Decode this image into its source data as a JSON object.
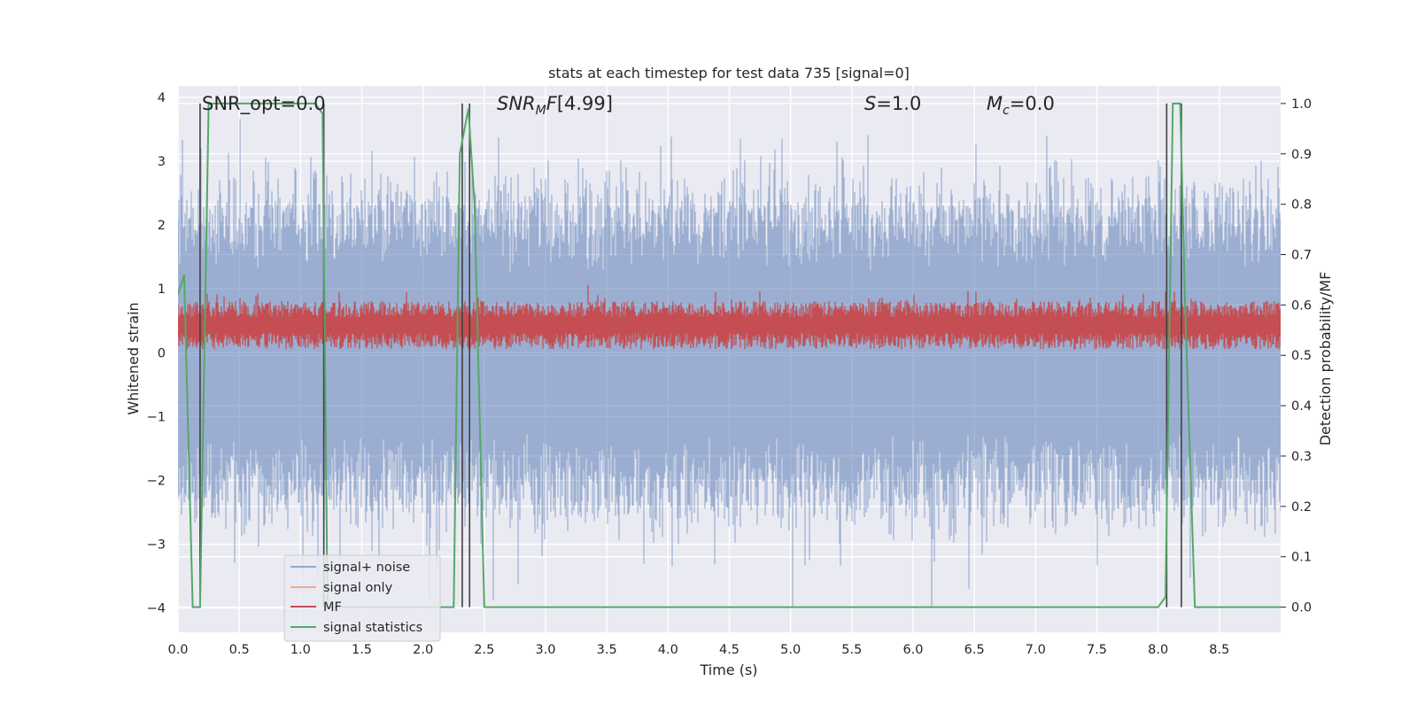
{
  "chart_data": {
    "type": "line",
    "title": "stats at each timestep for test data 735 [signal=0]",
    "xlabel": "Time (s)",
    "ylabel_left": "Whitened strain",
    "ylabel_right": "Detection probability/MF",
    "xlim": [
      0.0,
      9.0
    ],
    "ylim_left": [
      -4.38,
      4.18
    ],
    "ylim_right": [
      -0.05,
      1.035
    ],
    "x_ticks": [
      0.0,
      0.5,
      1.0,
      1.5,
      2.0,
      2.5,
      3.0,
      3.5,
      4.0,
      4.5,
      5.0,
      5.5,
      6.0,
      6.5,
      7.0,
      7.5,
      8.0,
      8.5
    ],
    "x_tick_labels": [
      "0.0",
      "0.5",
      "1.0",
      "1.5",
      "2.0",
      "2.5",
      "3.0",
      "3.5",
      "4.0",
      "4.5",
      "5.0",
      "5.5",
      "6.0",
      "6.5",
      "7.0",
      "7.5",
      "8.0",
      "8.5"
    ],
    "y_left_ticks": [
      4,
      3,
      2,
      1,
      0,
      -1,
      -2,
      -3,
      -4
    ],
    "y_left_tick_labels": [
      "4",
      "3",
      "2",
      "1",
      "0",
      "−1",
      "−2",
      "−3",
      "−4"
    ],
    "y_right_ticks": [
      1.0,
      0.9,
      0.8,
      0.7,
      0.6,
      0.5,
      0.4,
      0.3,
      0.2,
      0.1,
      0.0
    ],
    "y_right_tick_labels": [
      "1.0",
      "0.9",
      "0.8",
      "0.7",
      "0.6",
      "0.5",
      "0.4",
      "0.3",
      "0.2",
      "0.1",
      "0.0"
    ],
    "grid": true,
    "legend_position": "lower-left",
    "background": "#eaeaf2",
    "annotations": [
      {
        "name": "annotation-snr-opt",
        "x": 0.19,
        "text": "SNR_opt=0.0"
      },
      {
        "name": "annotation-snr-mf",
        "x": 2.6,
        "text": "[4.99]"
      },
      {
        "name": "annotation-s",
        "x": 5.6,
        "text": "=1.0"
      },
      {
        "name": "annotation-mc",
        "x": 6.6,
        "text": "=0.0"
      }
    ],
    "series": [
      {
        "name": "signal+ noise",
        "color": "#4c72b0",
        "axis": "left",
        "style": "noise-envelope",
        "x_range": [
          0.0,
          9.0
        ],
        "typical_peak_abs": 2.3,
        "max_value": 3.82,
        "min_value": -4.0,
        "spike_x": 5.02
      },
      {
        "name": "signal only",
        "color": "#dd8452",
        "axis": "left",
        "x": [],
        "y": []
      },
      {
        "name": "MF",
        "color": "#c44e52",
        "axis": "right",
        "style": "noise-band",
        "x_range": [
          0.0,
          9.0
        ],
        "typical_low": 0.52,
        "typical_high": 0.6,
        "max_value": 0.64,
        "max_x": 3.35
      },
      {
        "name": "signal statistics",
        "color": "#55a868",
        "axis": "right",
        "x": [
          0.0,
          0.05,
          0.12,
          0.18,
          0.25,
          1.0,
          1.12,
          1.18,
          1.22,
          1.3,
          2.0,
          2.25,
          2.3,
          2.37,
          2.42,
          2.5,
          7.0,
          8.0,
          8.06,
          8.12,
          8.18,
          8.22,
          8.3,
          9.0
        ],
        "y": [
          0.62,
          0.66,
          0.0,
          0.0,
          1.0,
          1.0,
          1.0,
          0.98,
          0.0,
          0.0,
          0.0,
          0.0,
          0.9,
          0.99,
          0.8,
          0.0,
          0.0,
          0.0,
          0.02,
          1.0,
          1.0,
          0.6,
          0.0,
          0.0
        ]
      }
    ],
    "event_lines": {
      "color": "#404040",
      "axis": "right",
      "x": [
        0.18,
        1.19,
        2.32,
        2.38,
        8.07,
        8.19
      ],
      "from": 0.0,
      "to": 1.0
    }
  },
  "legend": {
    "items": [
      {
        "label": "signal+ noise",
        "color": "#4c72b0"
      },
      {
        "label": "signal only",
        "color": "#dd8452"
      },
      {
        "label": "MF",
        "color": "#c44e52"
      },
      {
        "label": "signal statistics",
        "color": "#55a868"
      }
    ]
  }
}
